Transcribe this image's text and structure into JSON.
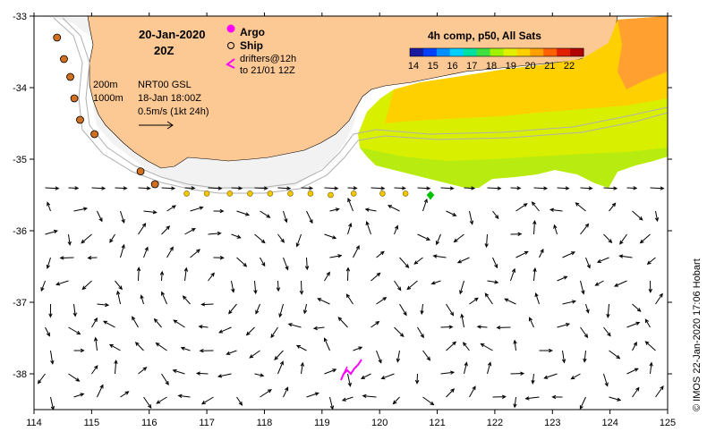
{
  "title": {
    "date": "20-Jan-2020",
    "time": "20Z"
  },
  "legend": {
    "argo_label": "Argo",
    "ship_label": "Ship",
    "drifters_line1": "drifters@12h",
    "drifters_line2": "to 21/01 12Z",
    "argo_color": "#ff00ff",
    "ship_color": "#000000",
    "drifter_color": "#ff00ff"
  },
  "info": {
    "contour_200": "200m",
    "contour_1000": "1000m",
    "product": "NRT00 GSL",
    "analysis_time": "18-Jan 18:00Z",
    "arrow_scale": "0.5m/s (1kt 24h)"
  },
  "colorbar": {
    "title": "4h comp, p50, All Sats",
    "ticks": [
      "14",
      "15",
      "16",
      "17",
      "18",
      "19",
      "20",
      "21",
      "22"
    ],
    "colors": [
      "#1a1aa0",
      "#0040ff",
      "#0090ff",
      "#00d0ff",
      "#00e0a0",
      "#40e040",
      "#a0f000",
      "#e0f000",
      "#ffd000",
      "#ffa000",
      "#ff6000",
      "#e02000",
      "#b00000"
    ]
  },
  "axes": {
    "x_ticks": [
      "114",
      "115",
      "116",
      "117",
      "118",
      "119",
      "120",
      "121",
      "122",
      "123",
      "124",
      "125"
    ],
    "y_ticks": [
      "-33",
      "-34",
      "-35",
      "-36",
      "-37",
      "-38"
    ],
    "lon_range": [
      114,
      125
    ],
    "lat_range": [
      -38.5,
      -33
    ]
  },
  "credit": "© IMOS 22-Jan-2020 17:06 Hobart",
  "land_color": "#fcc894",
  "shelf_color": "#f2f2f2",
  "contour_color": "#b0b0b0",
  "argo_floats": [
    {
      "lon": 114.4,
      "lat": -33.3
    },
    {
      "lon": 114.52,
      "lat": -33.6
    },
    {
      "lon": 114.63,
      "lat": -33.85
    },
    {
      "lon": 114.7,
      "lat": -34.15
    },
    {
      "lon": 114.8,
      "lat": -34.45
    },
    {
      "lon": 115.05,
      "lat": -34.65
    },
    {
      "lon": 115.85,
      "lat": -35.17
    },
    {
      "lon": 116.1,
      "lat": -35.35
    }
  ],
  "sst_points": [
    {
      "lon": 116.65,
      "lat": -35.48
    },
    {
      "lon": 117.0,
      "lat": -35.48
    },
    {
      "lon": 117.4,
      "lat": -35.48
    },
    {
      "lon": 117.75,
      "lat": -35.48
    },
    {
      "lon": 118.1,
      "lat": -35.48
    },
    {
      "lon": 118.45,
      "lat": -35.48
    },
    {
      "lon": 118.8,
      "lat": -35.48
    },
    {
      "lon": 119.15,
      "lat": -35.5
    },
    {
      "lon": 119.55,
      "lat": -35.48
    },
    {
      "lon": 120.05,
      "lat": -35.48
    },
    {
      "lon": 120.45,
      "lat": -35.48
    }
  ]
}
